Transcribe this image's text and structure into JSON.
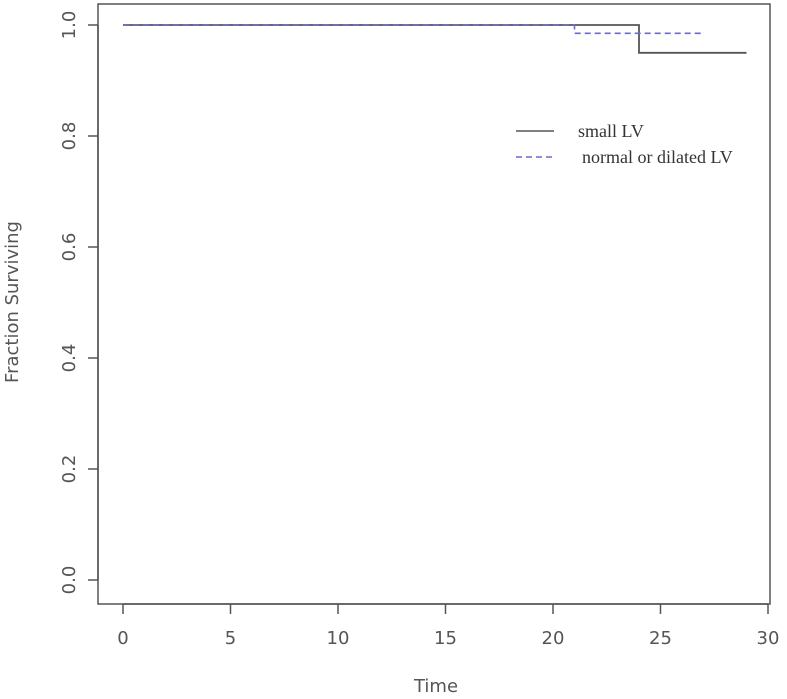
{
  "chart_data": {
    "type": "line",
    "step": true,
    "title": "",
    "xlabel": "Time",
    "ylabel": "Fraction Surviving",
    "xlim": [
      0,
      30
    ],
    "ylim": [
      0,
      1
    ],
    "xticks": [
      0,
      5,
      10,
      15,
      20,
      25,
      30
    ],
    "yticks": [
      0.0,
      0.2,
      0.4,
      0.6,
      0.8,
      1.0
    ],
    "xtick_labels": [
      "0",
      "5",
      "10",
      "15",
      "20",
      "25",
      "30"
    ],
    "ytick_labels": [
      "0.0",
      "0.2",
      "0.4",
      "0.6",
      "0.8",
      "1.0"
    ],
    "grid": false,
    "legend_position": "top-right",
    "series": [
      {
        "name": "small LV",
        "color": "#555555",
        "linestyle": "solid",
        "x": [
          0,
          24,
          29
        ],
        "y": [
          1.0,
          0.95,
          0.95
        ]
      },
      {
        "name": "normal or dilated LV",
        "color": "#6a6ad0",
        "linestyle": "dashed",
        "x": [
          0,
          21,
          27
        ],
        "y": [
          1.0,
          0.985,
          0.985
        ]
      }
    ]
  }
}
